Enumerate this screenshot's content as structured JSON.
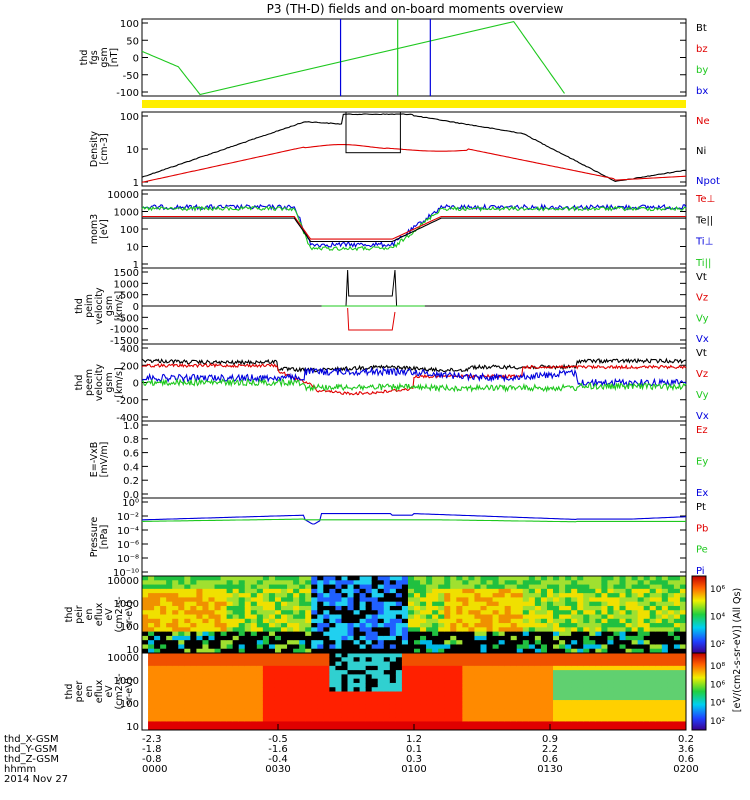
{
  "title": "P3 (TH-D) fields and on-board moments overview",
  "date_label": "2014 Nov 27",
  "colors": {
    "black": "#000000",
    "red": "#e00000",
    "green": "#1ec81e",
    "blue": "#0000dd",
    "yellow": "#ffee00"
  },
  "chart_data": [
    {
      "type": "line",
      "ylabel": [
        "thd",
        "fgs",
        "gsm",
        "[nT]"
      ],
      "yticks": [
        "100",
        "50",
        "0",
        "-50",
        "-100"
      ],
      "legend": [
        {
          "text": "Bt",
          "color": "black"
        },
        {
          "text": "bz",
          "color": "red"
        },
        {
          "text": "by",
          "color": "green"
        },
        {
          "text": "bx",
          "color": "blue"
        }
      ]
    },
    {
      "type": "line",
      "ylabel": [
        "Density",
        "[cm-3]"
      ],
      "yticks": [
        "100",
        "10",
        "1"
      ],
      "legend": [
        {
          "text": "Ne",
          "color": "red"
        },
        {
          "text": "Ni",
          "color": "black"
        },
        {
          "text": "Npot",
          "color": "blue"
        }
      ]
    },
    {
      "type": "line",
      "ylabel": [
        "mom3",
        "[eV]"
      ],
      "yticks": [
        "10000",
        "1000",
        "100",
        "10",
        "1"
      ],
      "legend": [
        {
          "text": "Te⊥",
          "color": "red"
        },
        {
          "text": "Te||",
          "color": "black"
        },
        {
          "text": "Ti⊥",
          "color": "blue"
        },
        {
          "text": "Ti||",
          "color": "green"
        }
      ]
    },
    {
      "type": "line",
      "ylabel": [
        "thd",
        "peim",
        "velocity",
        "gsm",
        "[km/s]"
      ],
      "yticks": [
        "1500",
        "1000",
        "500",
        "0",
        "-500",
        "-1000",
        "-1500"
      ],
      "legend": [
        {
          "text": "Vt",
          "color": "black"
        },
        {
          "text": "Vz",
          "color": "red"
        },
        {
          "text": "Vy",
          "color": "green"
        },
        {
          "text": "Vx",
          "color": "blue"
        }
      ]
    },
    {
      "type": "line",
      "ylabel": [
        "thd",
        "peem",
        "velocity",
        "gsm",
        "[km/s]"
      ],
      "yticks": [
        "400",
        "200",
        "0",
        "-200",
        "-400"
      ],
      "legend": [
        {
          "text": "Vt",
          "color": "black"
        },
        {
          "text": "Vz",
          "color": "red"
        },
        {
          "text": "Vy",
          "color": "green"
        },
        {
          "text": "Vx",
          "color": "blue"
        }
      ]
    },
    {
      "type": "line",
      "ylabel": [
        "E=-VxB",
        "[mV/m]"
      ],
      "yticks": [
        "1.0",
        "0.8",
        "0.6",
        "0.4",
        "0.2",
        "0.0"
      ],
      "legend": [
        {
          "text": "Ez",
          "color": "red"
        },
        {
          "text": "Ey",
          "color": "green"
        },
        {
          "text": "Ex",
          "color": "blue"
        }
      ]
    },
    {
      "type": "line",
      "ylabel": [
        "Pressure",
        "[nPa]"
      ],
      "yticks": [
        "10⁰",
        "10⁻²",
        "10⁻⁴",
        "10⁻⁶",
        "10⁻⁸",
        "10⁻¹⁰"
      ],
      "legend": [
        {
          "text": "Pt",
          "color": "black"
        },
        {
          "text": "Pb",
          "color": "red"
        },
        {
          "text": "Pe",
          "color": "green"
        },
        {
          "text": "Pi",
          "color": "blue"
        }
      ]
    },
    {
      "type": "heatmap",
      "ylabel": [
        "thd",
        "peir",
        "en",
        "eflux",
        "eV",
        "(cm2-s-",
        "sr-eV)"
      ],
      "yticks": [
        "10000",
        "1000",
        "100",
        "10"
      ],
      "colorbar_ticks": [
        "10⁶",
        "10⁴",
        "10²"
      ]
    },
    {
      "type": "heatmap",
      "ylabel": [
        "thd",
        "peer",
        "en",
        "eflux",
        "eV",
        "(cm2-s-",
        "sr-eV)"
      ],
      "yticks": [
        "10000",
        "1000",
        "100",
        "10"
      ],
      "colorbar_ticks": [
        "10⁸",
        "10⁶",
        "10⁴",
        "10²"
      ]
    }
  ],
  "colorbar_unit": "[eV/(cm2-s-sr-eV)] (All Qs)",
  "ephemeris": {
    "labels": [
      "thd_X-GSM",
      "thd_Y-GSM",
      "thd_Z-GSM",
      "hhmm"
    ],
    "columns": [
      [
        "-2.3",
        "-1.8",
        "-0.8",
        "0000"
      ],
      [
        "-0.5",
        "-1.6",
        "-0.4",
        "0030"
      ],
      [
        "1.2",
        "0.1",
        "0.3",
        "0100"
      ],
      [
        "0.9",
        "2.2",
        "0.6",
        "0130"
      ],
      [
        "0.2",
        "3.6",
        "0.6",
        "0200"
      ]
    ]
  }
}
